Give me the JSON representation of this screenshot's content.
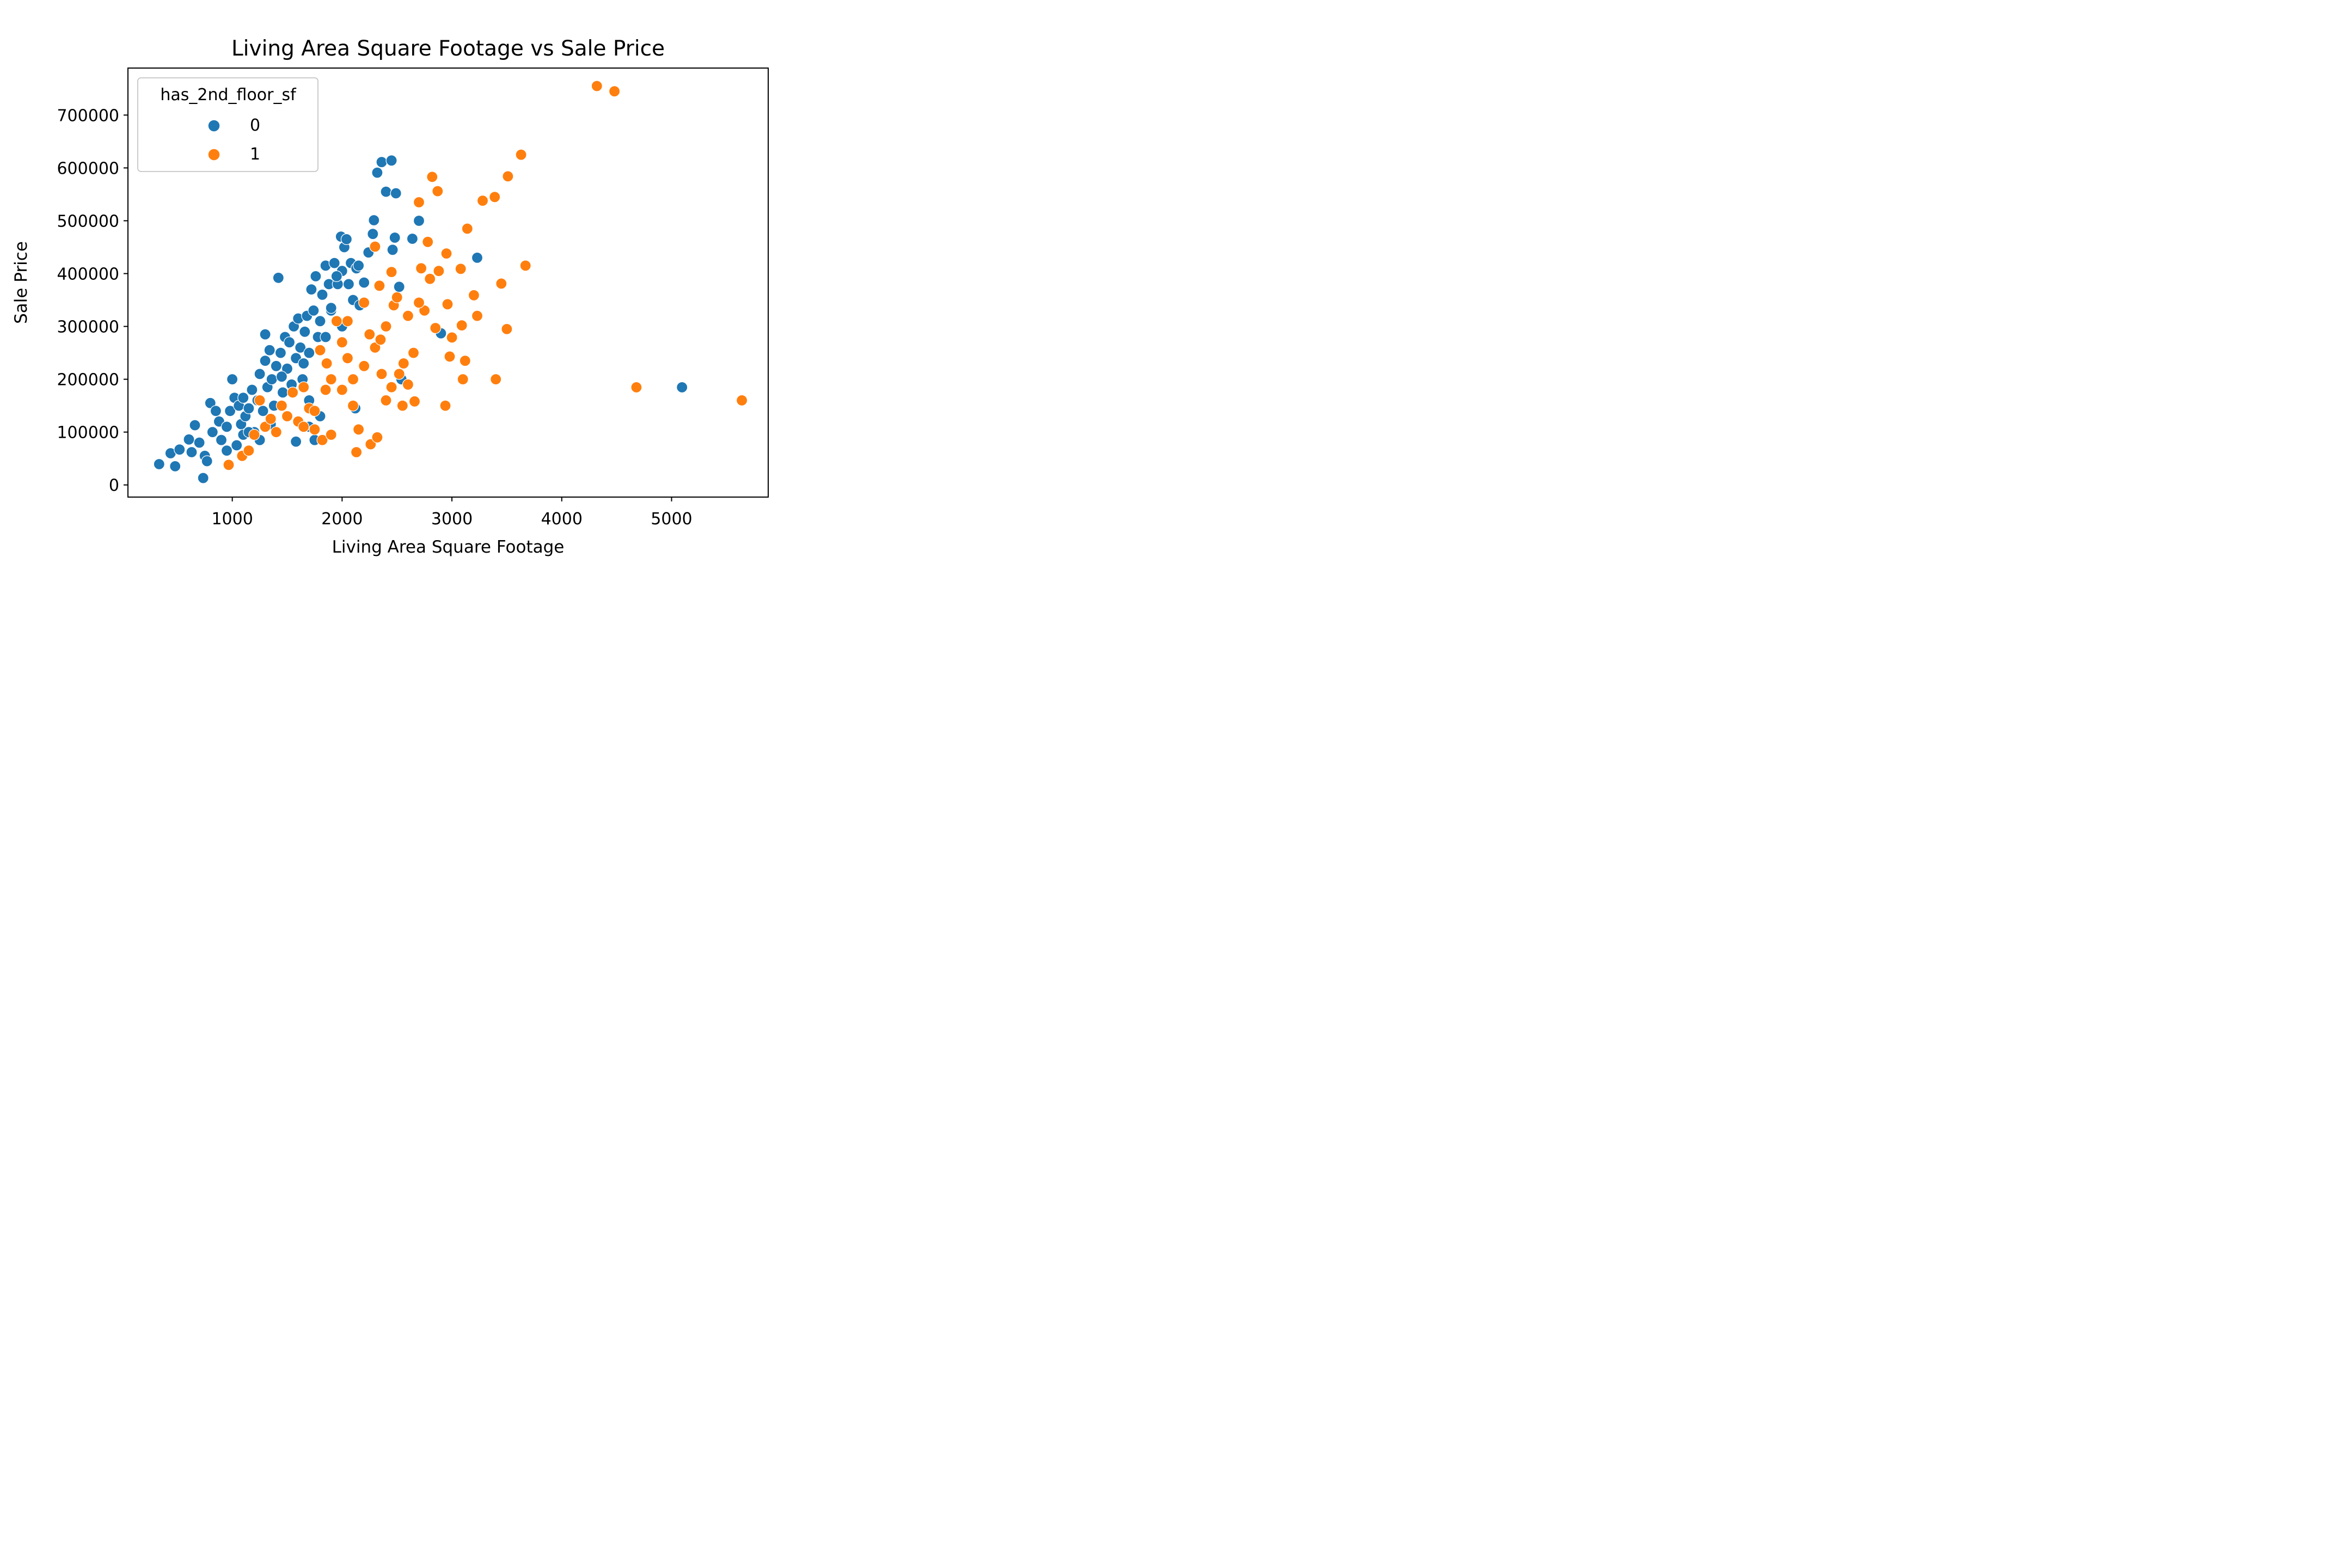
{
  "chart_data": {
    "type": "scatter",
    "title": "Living Area Square Footage vs Sale Price",
    "xlabel": "Living Area Square Footage",
    "ylabel": "Sale Price",
    "xlim": [
      50,
      5880
    ],
    "ylim": [
      -23000,
      789000
    ],
    "grid": false,
    "x_ticks": [
      1000,
      2000,
      3000,
      4000,
      5000
    ],
    "y_ticks": [
      0,
      100000,
      200000,
      300000,
      400000,
      500000,
      600000,
      700000
    ],
    "legend": {
      "title": "has_2nd_floor_sf",
      "placement": "top-left",
      "entries": [
        {
          "label": "0",
          "color": "#1f77b4"
        },
        {
          "label": "1",
          "color": "#ff7f0e"
        }
      ]
    },
    "series": [
      {
        "name": "0",
        "color": "#1f77b4",
        "points": [
          [
            334,
            39300
          ],
          [
            438,
            60000
          ],
          [
            480,
            35311
          ],
          [
            520,
            67000
          ],
          [
            605,
            86000
          ],
          [
            630,
            62000
          ],
          [
            660,
            113000
          ],
          [
            700,
            80000
          ],
          [
            735,
            13100
          ],
          [
            750,
            55000
          ],
          [
            770,
            45000
          ],
          [
            800,
            155000
          ],
          [
            820,
            100000
          ],
          [
            850,
            140000
          ],
          [
            880,
            120000
          ],
          [
            900,
            85000
          ],
          [
            950,
            110000
          ],
          [
            980,
            140000
          ],
          [
            1000,
            200000
          ],
          [
            1020,
            165000
          ],
          [
            1040,
            75000
          ],
          [
            1060,
            150000
          ],
          [
            1080,
            115000
          ],
          [
            1100,
            165000
          ],
          [
            1120,
            130000
          ],
          [
            1150,
            145000
          ],
          [
            1180,
            180000
          ],
          [
            1200,
            100000
          ],
          [
            1230,
            160000
          ],
          [
            1250,
            210000
          ],
          [
            1280,
            140000
          ],
          [
            1300,
            235000
          ],
          [
            1320,
            185000
          ],
          [
            1340,
            255000
          ],
          [
            1360,
            200000
          ],
          [
            1380,
            150000
          ],
          [
            1400,
            225000
          ],
          [
            1420,
            392000
          ],
          [
            1440,
            250000
          ],
          [
            1460,
            175000
          ],
          [
            1480,
            280000
          ],
          [
            1500,
            220000
          ],
          [
            1520,
            270000
          ],
          [
            1540,
            190000
          ],
          [
            1560,
            300000
          ],
          [
            1580,
            240000
          ],
          [
            1600,
            315000
          ],
          [
            1620,
            260000
          ],
          [
            1640,
            200000
          ],
          [
            1660,
            290000
          ],
          [
            1680,
            320000
          ],
          [
            1700,
            250000
          ],
          [
            1720,
            370000
          ],
          [
            1740,
            330000
          ],
          [
            1760,
            395000
          ],
          [
            1780,
            280000
          ],
          [
            1800,
            310000
          ],
          [
            1820,
            360000
          ],
          [
            1850,
            415000
          ],
          [
            1880,
            380000
          ],
          [
            1900,
            330000
          ],
          [
            1930,
            420000
          ],
          [
            1960,
            380000
          ],
          [
            1990,
            470000
          ],
          [
            2000,
            405000
          ],
          [
            2020,
            450000
          ],
          [
            2040,
            465000
          ],
          [
            2060,
            380000
          ],
          [
            2080,
            420000
          ],
          [
            2100,
            350000
          ],
          [
            2130,
            410000
          ],
          [
            2160,
            340000
          ],
          [
            2200,
            383000
          ],
          [
            2240,
            440000
          ],
          [
            2280,
            475000
          ],
          [
            2290,
            501000
          ],
          [
            2320,
            591000
          ],
          [
            2360,
            611000
          ],
          [
            2400,
            555000
          ],
          [
            2450,
            614000
          ],
          [
            2460,
            445000
          ],
          [
            2480,
            468000
          ],
          [
            2490,
            552000
          ],
          [
            2520,
            375000
          ],
          [
            2540,
            200000
          ],
          [
            2640,
            466000
          ],
          [
            2700,
            500000
          ],
          [
            2900,
            287000
          ],
          [
            3230,
            430000
          ],
          [
            5095,
            184750
          ],
          [
            1580,
            82000
          ],
          [
            1700,
            110000
          ],
          [
            1750,
            85000
          ],
          [
            1800,
            130000
          ],
          [
            2120,
            145000
          ],
          [
            1250,
            85000
          ],
          [
            1350,
            115000
          ],
          [
            1100,
            95000
          ],
          [
            950,
            65000
          ],
          [
            1300,
            285000
          ],
          [
            1550,
            175000
          ],
          [
            1650,
            230000
          ],
          [
            1900,
            335000
          ],
          [
            1950,
            395000
          ],
          [
            2150,
            415000
          ],
          [
            1850,
            280000
          ],
          [
            2000,
            300000
          ],
          [
            1700,
            160000
          ],
          [
            1450,
            205000
          ],
          [
            1150,
            100000
          ]
        ]
      },
      {
        "name": "1",
        "color": "#ff7f0e",
        "points": [
          [
            967,
            38000
          ],
          [
            1090,
            55000
          ],
          [
            1150,
            65000
          ],
          [
            1200,
            95000
          ],
          [
            1250,
            160000
          ],
          [
            1300,
            110000
          ],
          [
            1350,
            125000
          ],
          [
            1400,
            100000
          ],
          [
            1450,
            150000
          ],
          [
            1500,
            130000
          ],
          [
            1550,
            175000
          ],
          [
            1600,
            120000
          ],
          [
            1650,
            185000
          ],
          [
            1700,
            145000
          ],
          [
            1750,
            105000
          ],
          [
            1800,
            255000
          ],
          [
            1820,
            85000
          ],
          [
            1860,
            230000
          ],
          [
            1900,
            95000
          ],
          [
            1950,
            310000
          ],
          [
            2000,
            270000
          ],
          [
            2050,
            240000
          ],
          [
            2100,
            200000
          ],
          [
            2130,
            62000
          ],
          [
            2150,
            105000
          ],
          [
            2200,
            345000
          ],
          [
            2250,
            285000
          ],
          [
            2260,
            77000
          ],
          [
            2300,
            451000
          ],
          [
            2320,
            90000
          ],
          [
            2340,
            377000
          ],
          [
            2360,
            210000
          ],
          [
            2400,
            300000
          ],
          [
            2450,
            403000
          ],
          [
            2470,
            340000
          ],
          [
            2500,
            355000
          ],
          [
            2520,
            210000
          ],
          [
            2560,
            230000
          ],
          [
            2600,
            190000
          ],
          [
            2650,
            250000
          ],
          [
            2660,
            158000
          ],
          [
            2700,
            535000
          ],
          [
            2720,
            410000
          ],
          [
            2750,
            330000
          ],
          [
            2780,
            460000
          ],
          [
            2800,
            390000
          ],
          [
            2820,
            583000
          ],
          [
            2850,
            297000
          ],
          [
            2870,
            556000
          ],
          [
            2880,
            405000
          ],
          [
            2940,
            150000
          ],
          [
            2950,
            438000
          ],
          [
            2960,
            342000
          ],
          [
            2980,
            243000
          ],
          [
            3000,
            279000
          ],
          [
            3080,
            409000
          ],
          [
            3090,
            302000
          ],
          [
            3100,
            200000
          ],
          [
            3120,
            235000
          ],
          [
            3140,
            485000
          ],
          [
            3200,
            359000
          ],
          [
            3230,
            320000
          ],
          [
            3280,
            538000
          ],
          [
            3390,
            545000
          ],
          [
            3400,
            200000
          ],
          [
            3450,
            381000
          ],
          [
            3500,
            295000
          ],
          [
            3510,
            584000
          ],
          [
            3630,
            625000
          ],
          [
            3670,
            415000
          ],
          [
            4320,
            755000
          ],
          [
            4480,
            745000
          ],
          [
            4680,
            184750
          ],
          [
            5640,
            160000
          ],
          [
            2100,
            150000
          ],
          [
            2300,
            260000
          ],
          [
            2400,
            160000
          ],
          [
            2550,
            150000
          ],
          [
            2000,
            180000
          ],
          [
            1900,
            200000
          ],
          [
            1750,
            140000
          ],
          [
            1650,
            110000
          ],
          [
            2200,
            225000
          ],
          [
            2350,
            275000
          ],
          [
            2600,
            320000
          ],
          [
            2450,
            185000
          ],
          [
            2700,
            345000
          ],
          [
            1850,
            180000
          ],
          [
            2050,
            310000
          ]
        ]
      }
    ]
  }
}
